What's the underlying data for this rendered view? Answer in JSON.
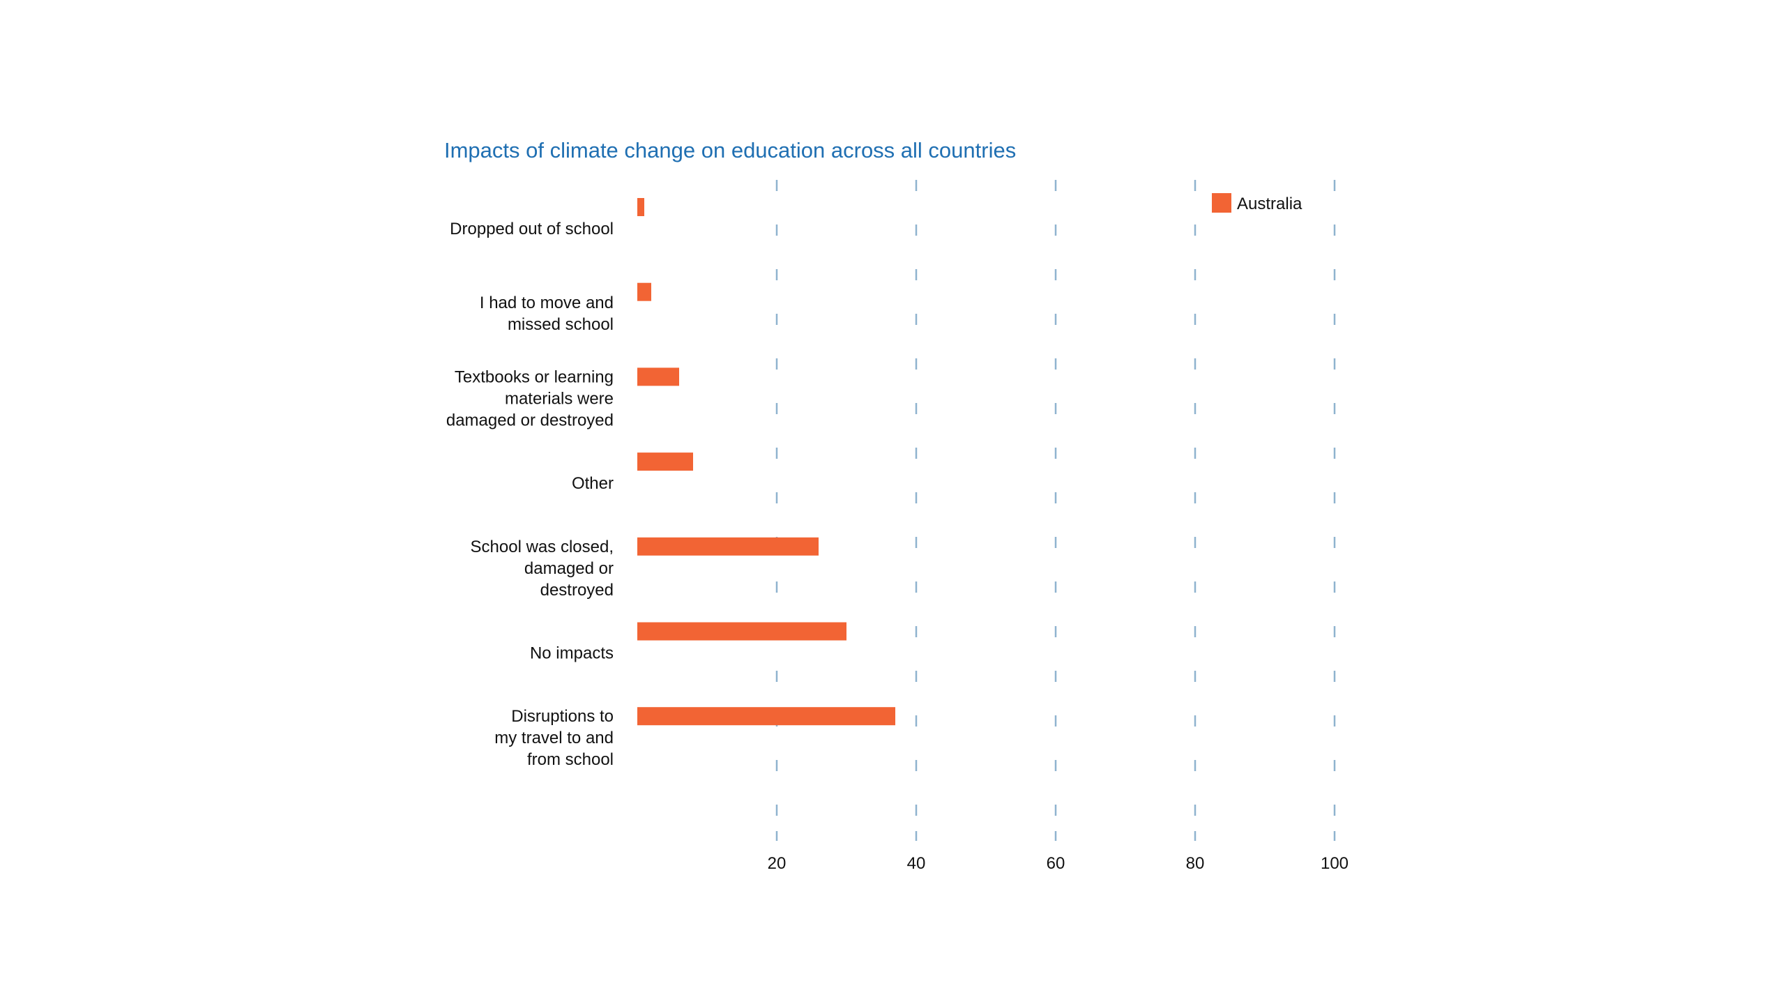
{
  "chart_data": {
    "type": "bar",
    "orientation": "horizontal",
    "title": "Impacts of climate change on education across all countries",
    "xlabel": "",
    "ylabel": "",
    "xlim": [
      0,
      100
    ],
    "x_ticks": [
      "20",
      "40",
      "60",
      "80",
      "100"
    ],
    "grid": "vertical dashed",
    "legend_position": "top-right",
    "colors": {
      "bar": "#f26434",
      "grid": "#8fb3cf",
      "title": "#1f6fb2"
    },
    "categories": [
      [
        "Dropped out of school"
      ],
      [
        "I had to move and",
        "missed school"
      ],
      [
        "Textbooks or learning",
        "materials were",
        "damaged or destroyed"
      ],
      [
        "Other"
      ],
      [
        "School was closed,",
        "damaged or",
        "destroyed"
      ],
      [
        "No impacts"
      ],
      [
        "Disruptions to",
        "my travel to and",
        "from school"
      ]
    ],
    "series": [
      {
        "name": "Australia",
        "values": [
          1,
          2,
          6,
          8,
          26,
          30,
          37
        ]
      }
    ]
  }
}
